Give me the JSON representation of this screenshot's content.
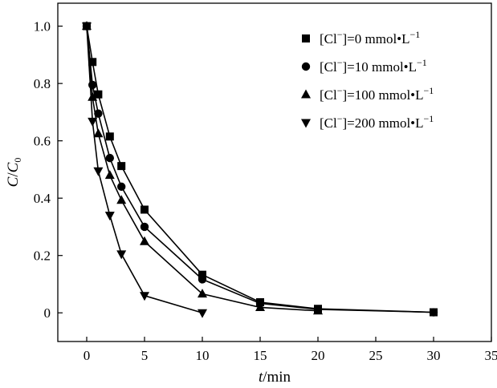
{
  "chart_data": {
    "type": "line",
    "xlabel": {
      "var": "t",
      "unit": "/min"
    },
    "ylabel": {
      "num": "C",
      "den": "C",
      "den_sub": "0"
    },
    "xlim": [
      -2.5,
      35
    ],
    "ylim": [
      -0.1,
      1.08
    ],
    "xticks": [
      0,
      5,
      10,
      15,
      20,
      25,
      30,
      35
    ],
    "yticks": [
      0,
      0.2,
      0.4,
      0.6,
      0.8,
      1.0
    ],
    "ytick_labels": [
      "0",
      "0.2",
      "0.4",
      "0.6",
      "0.8",
      "1.0"
    ],
    "legend_position": "top-right",
    "legend_unit_prefix": "mmol•L",
    "legend_unit_sup": "−1",
    "series": [
      {
        "name": "[Cl−]=0 mmol•L−1",
        "legend_prefix": "[Cl",
        "legend_sup": "−",
        "legend_value": "]=0 ",
        "marker": "square",
        "points": [
          [
            0,
            1.0
          ],
          [
            0.5,
            0.875
          ],
          [
            1,
            0.762
          ],
          [
            2,
            0.615
          ],
          [
            3,
            0.512
          ],
          [
            5,
            0.36
          ],
          [
            10,
            0.133
          ],
          [
            15,
            0.037
          ],
          [
            20,
            0.014
          ],
          [
            30,
            0.002
          ]
        ]
      },
      {
        "name": "[Cl−]=10 mmol•L−1",
        "legend_prefix": "[Cl",
        "legend_sup": "−",
        "legend_value": "]=10 ",
        "marker": "circle",
        "points": [
          [
            0,
            1.0
          ],
          [
            0.5,
            0.795
          ],
          [
            1,
            0.695
          ],
          [
            2,
            0.54
          ],
          [
            3,
            0.44
          ],
          [
            5,
            0.3
          ],
          [
            10,
            0.117
          ],
          [
            15,
            0.033
          ],
          [
            20,
            0.012
          ],
          [
            30,
            0.002
          ]
        ]
      },
      {
        "name": "[Cl−]=100 mmol•L−1",
        "legend_prefix": "[Cl",
        "legend_sup": "−",
        "legend_value": "]=100 ",
        "marker": "triangle-up",
        "points": [
          [
            0,
            1.0
          ],
          [
            0.5,
            0.752
          ],
          [
            1,
            0.625
          ],
          [
            2,
            0.48
          ],
          [
            3,
            0.393
          ],
          [
            5,
            0.249
          ],
          [
            10,
            0.066
          ],
          [
            15,
            0.019
          ],
          [
            20,
            0.007
          ]
        ]
      },
      {
        "name": "[Cl−]=200 mmol•L−1",
        "legend_prefix": "[Cl",
        "legend_sup": "−",
        "legend_value": "]=200 ",
        "marker": "triangle-down",
        "points": [
          [
            0,
            1.0
          ],
          [
            0.5,
            0.668
          ],
          [
            1,
            0.495
          ],
          [
            2,
            0.34
          ],
          [
            3,
            0.205
          ],
          [
            5,
            0.06
          ],
          [
            10,
            0.0
          ]
        ]
      }
    ]
  }
}
